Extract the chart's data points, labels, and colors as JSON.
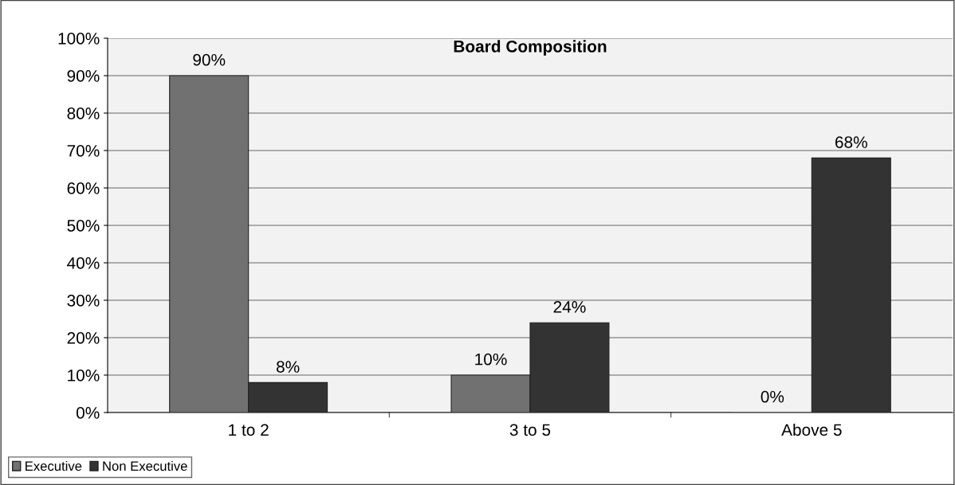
{
  "chart_data": {
    "type": "bar",
    "title": "Board Composition",
    "categories": [
      "1 to 2",
      "3 to 5",
      "Above 5"
    ],
    "series": [
      {
        "name": "Executive",
        "color": "#717171",
        "values": [
          90,
          10,
          0
        ],
        "value_labels": [
          "90%",
          "10%",
          "0%"
        ]
      },
      {
        "name": "Non Executive",
        "color": "#333333",
        "values": [
          8,
          24,
          68
        ],
        "value_labels": [
          "8%",
          "24%",
          "68%"
        ]
      }
    ],
    "ylim": [
      0,
      100
    ],
    "yticks": [
      {
        "value": 0,
        "label": "0%"
      },
      {
        "value": 10,
        "label": "10%"
      },
      {
        "value": 20,
        "label": "20%"
      },
      {
        "value": 30,
        "label": "30%"
      },
      {
        "value": 40,
        "label": "40%"
      },
      {
        "value": 50,
        "label": "50%"
      },
      {
        "value": 60,
        "label": "60%"
      },
      {
        "value": 70,
        "label": "70%"
      },
      {
        "value": 80,
        "label": "80%"
      },
      {
        "value": 90,
        "label": "90%"
      },
      {
        "value": 100,
        "label": "100%"
      }
    ],
    "grid": "y",
    "legend": "bottom left"
  }
}
